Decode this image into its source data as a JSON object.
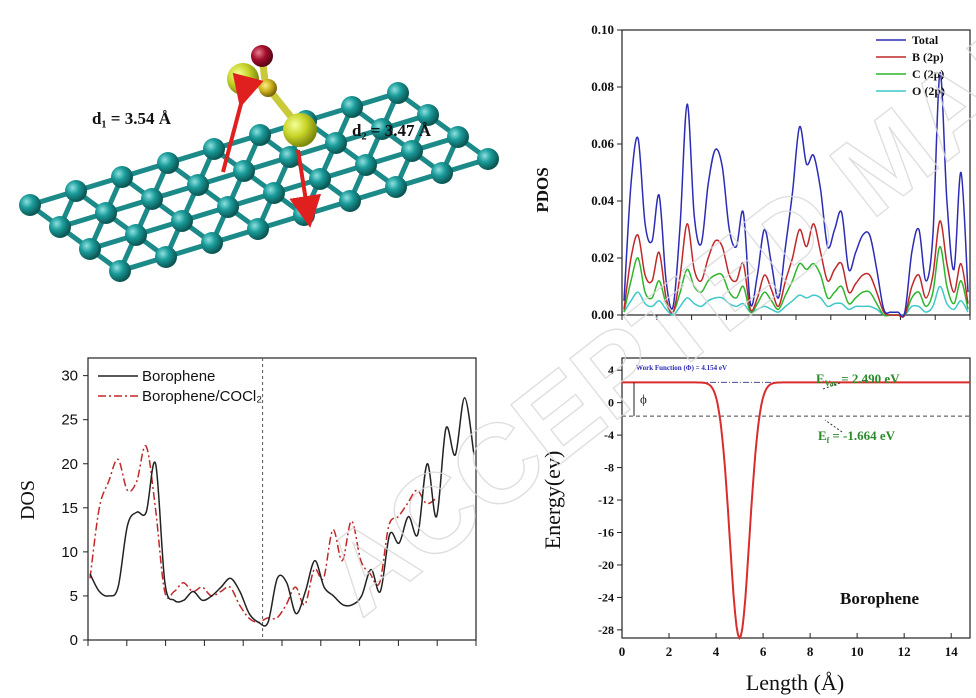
{
  "panels": {
    "molecule": {
      "d1_label": "d₁ = 3.54 Å",
      "d2_label": "d₂ = 3.47 Å"
    }
  },
  "watermark": {
    "text": "ACCEPTED MANUSCRIPT"
  },
  "chart_data": [
    {
      "id": "pdos",
      "type": "line",
      "ylabel": "PDOS",
      "ylim": [
        0.0,
        0.1
      ],
      "yticks": [
        "0.00",
        "0.02",
        "0.04",
        "0.06",
        "0.08",
        "0.10"
      ],
      "legend_position": "top-right",
      "series": [
        {
          "name": "Total",
          "color": "#2c2cb5",
          "values": [
            0.005,
            0.046,
            0.062,
            0.032,
            0.026,
            0.042,
            0.012,
            0.003,
            0.032,
            0.074,
            0.035,
            0.025,
            0.046,
            0.058,
            0.052,
            0.03,
            0.024,
            0.036,
            0.004,
            0.014,
            0.03,
            0.018,
            0.006,
            0.024,
            0.043,
            0.066,
            0.053,
            0.056,
            0.044,
            0.024,
            0.03,
            0.036,
            0.016,
            0.022,
            0.028,
            0.028,
            0.016,
            0.002,
            0.001,
            0.001,
            0.001,
            0.022,
            0.03,
            0.012,
            0.028,
            0.085,
            0.04,
            0.016,
            0.05,
            0.008
          ]
        },
        {
          "name": "B (2p)",
          "color": "#c0282a",
          "values": [
            0.002,
            0.02,
            0.028,
            0.014,
            0.012,
            0.022,
            0.006,
            0.001,
            0.014,
            0.032,
            0.016,
            0.012,
            0.02,
            0.026,
            0.024,
            0.014,
            0.012,
            0.018,
            0.002,
            0.006,
            0.014,
            0.009,
            0.003,
            0.012,
            0.02,
            0.03,
            0.024,
            0.032,
            0.022,
            0.012,
            0.016,
            0.018,
            0.008,
            0.011,
            0.014,
            0.014,
            0.008,
            0.001,
            0.0,
            0.0,
            0.0,
            0.01,
            0.014,
            0.006,
            0.014,
            0.033,
            0.018,
            0.008,
            0.018,
            0.004
          ]
        },
        {
          "name": "C (2p)",
          "color": "#2db52d",
          "values": [
            0.001,
            0.012,
            0.02,
            0.008,
            0.006,
            0.012,
            0.004,
            0.001,
            0.008,
            0.016,
            0.01,
            0.008,
            0.012,
            0.014,
            0.014,
            0.008,
            0.006,
            0.01,
            0.001,
            0.004,
            0.008,
            0.005,
            0.002,
            0.007,
            0.012,
            0.018,
            0.016,
            0.018,
            0.014,
            0.006,
            0.008,
            0.01,
            0.004,
            0.006,
            0.008,
            0.008,
            0.004,
            0.0,
            0.0,
            0.0,
            0.0,
            0.006,
            0.008,
            0.003,
            0.008,
            0.024,
            0.01,
            0.004,
            0.012,
            0.002
          ]
        },
        {
          "name": "O (2p)",
          "color": "#3ec8c8",
          "values": [
            0.001,
            0.005,
            0.008,
            0.004,
            0.003,
            0.005,
            0.002,
            0.0,
            0.003,
            0.006,
            0.004,
            0.003,
            0.005,
            0.006,
            0.006,
            0.004,
            0.003,
            0.004,
            0.001,
            0.002,
            0.003,
            0.002,
            0.001,
            0.003,
            0.005,
            0.007,
            0.006,
            0.007,
            0.006,
            0.003,
            0.004,
            0.004,
            0.002,
            0.003,
            0.003,
            0.003,
            0.002,
            0.0,
            0.0,
            0.0,
            0.0,
            0.003,
            0.003,
            0.001,
            0.003,
            0.01,
            0.004,
            0.002,
            0.005,
            0.001
          ]
        }
      ]
    },
    {
      "id": "dos",
      "type": "line",
      "ylabel": "DOS",
      "ylim": [
        0,
        32
      ],
      "yticks": [
        "0",
        "5",
        "10",
        "15",
        "20",
        "25",
        "30"
      ],
      "legend_position": "top-left",
      "fermi_line_fraction": 0.45,
      "series": [
        {
          "name": "Borophene",
          "color": "#222222",
          "dash": "solid",
          "values": [
            7.5,
            5.5,
            5.0,
            6.0,
            13.0,
            14.5,
            14.5,
            20.0,
            6.5,
            4.5,
            4.5,
            5.5,
            4.5,
            5.0,
            6.0,
            7.0,
            5.5,
            3.0,
            2.0,
            2.0,
            7.0,
            6.5,
            3.0,
            5.5,
            9.0,
            6.0,
            5.0,
            4.0,
            4.0,
            5.0,
            8.0,
            5.5,
            12.0,
            11.0,
            14.0,
            12.0,
            20.0,
            14.0,
            24.0,
            21.0,
            27.5,
            21.0
          ]
        },
        {
          "name": "Borophene/COCl₂",
          "color": "#c0282a",
          "dash": "dashdot",
          "values": [
            7.0,
            15.0,
            18.0,
            20.5,
            17.0,
            18.0,
            22.0,
            15.0,
            5.5,
            5.5,
            6.5,
            5.5,
            6.0,
            5.0,
            5.5,
            6.0,
            4.0,
            2.5,
            2.0,
            2.5,
            2.5,
            4.0,
            6.0,
            4.0,
            8.0,
            7.0,
            12.5,
            9.0,
            13.5,
            9.0,
            7.5,
            6.5,
            13.0,
            14.0,
            15.5,
            17.0,
            15.5,
            16.0
          ]
        }
      ]
    },
    {
      "id": "work_function",
      "type": "line",
      "title": "Borophene",
      "xlabel": "Length (Å)",
      "ylabel": "Energy(ev)",
      "xlim": [
        0,
        14.8
      ],
      "ylim": [
        -29,
        5.5
      ],
      "xticks": [
        "0",
        "2",
        "4",
        "6",
        "8",
        "10",
        "12",
        "14"
      ],
      "yticks": [
        "4",
        "0",
        "-4",
        "-8",
        "-12",
        "-16",
        "-20",
        "-24",
        "-28"
      ],
      "annotations": {
        "work_function": "Work Function (Φ) = 4.154 eV",
        "evac": "E",
        "evac_sub": "Vac",
        "evac_value": "= 2.490 eV",
        "ef": "E",
        "ef_sub": "f",
        "ef_value": "= -1.664 eV",
        "phi": "ϕ"
      },
      "evac_value_num": 2.49,
      "ef_value_num": -1.664,
      "well_center": 5.0,
      "well_min": -29.0,
      "color": "#d92d2d"
    }
  ]
}
